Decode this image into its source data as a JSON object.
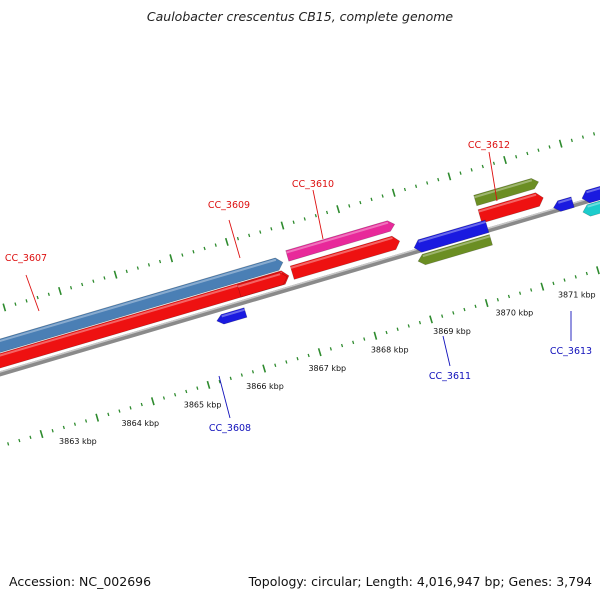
{
  "title": "Caulobacter crescentus CB15, complete genome",
  "footer": {
    "accession": "Accession: NC_002696",
    "stats": "Topology: circular; Length: 4,016,947 bp; Genes: 3,794"
  },
  "colors": {
    "backbone": "#8a8a8a",
    "tick": "#2e8b2e",
    "forward_label": "#dd1111",
    "reverse_label": "#1111bb",
    "cds_red": "#ee1111",
    "cds_blue": "#1a1ae0",
    "cds_steelblue": "#4a7fb5",
    "cds_pink": "#e8299a",
    "cds_olive": "#6b8e23",
    "cds_cyan": "#1ccccc"
  },
  "scale": {
    "tick_labels": [
      "3863 kbp",
      "3864 kbp",
      "3865 kbp",
      "3866 kbp",
      "3867 kbp",
      "3868 kbp",
      "3869 kbp",
      "3870 kbp",
      "3871 kbp"
    ]
  },
  "genes": {
    "labels": [
      {
        "name": "CC_3607",
        "strand": "forward"
      },
      {
        "name": "CC_3608",
        "strand": "reverse"
      },
      {
        "name": "CC_3609",
        "strand": "forward"
      },
      {
        "name": "CC_3610",
        "strand": "forward"
      },
      {
        "name": "CC_3611",
        "strand": "reverse"
      },
      {
        "name": "CC_3612",
        "strand": "forward"
      },
      {
        "name": "CC_3613",
        "strand": "reverse"
      }
    ]
  }
}
